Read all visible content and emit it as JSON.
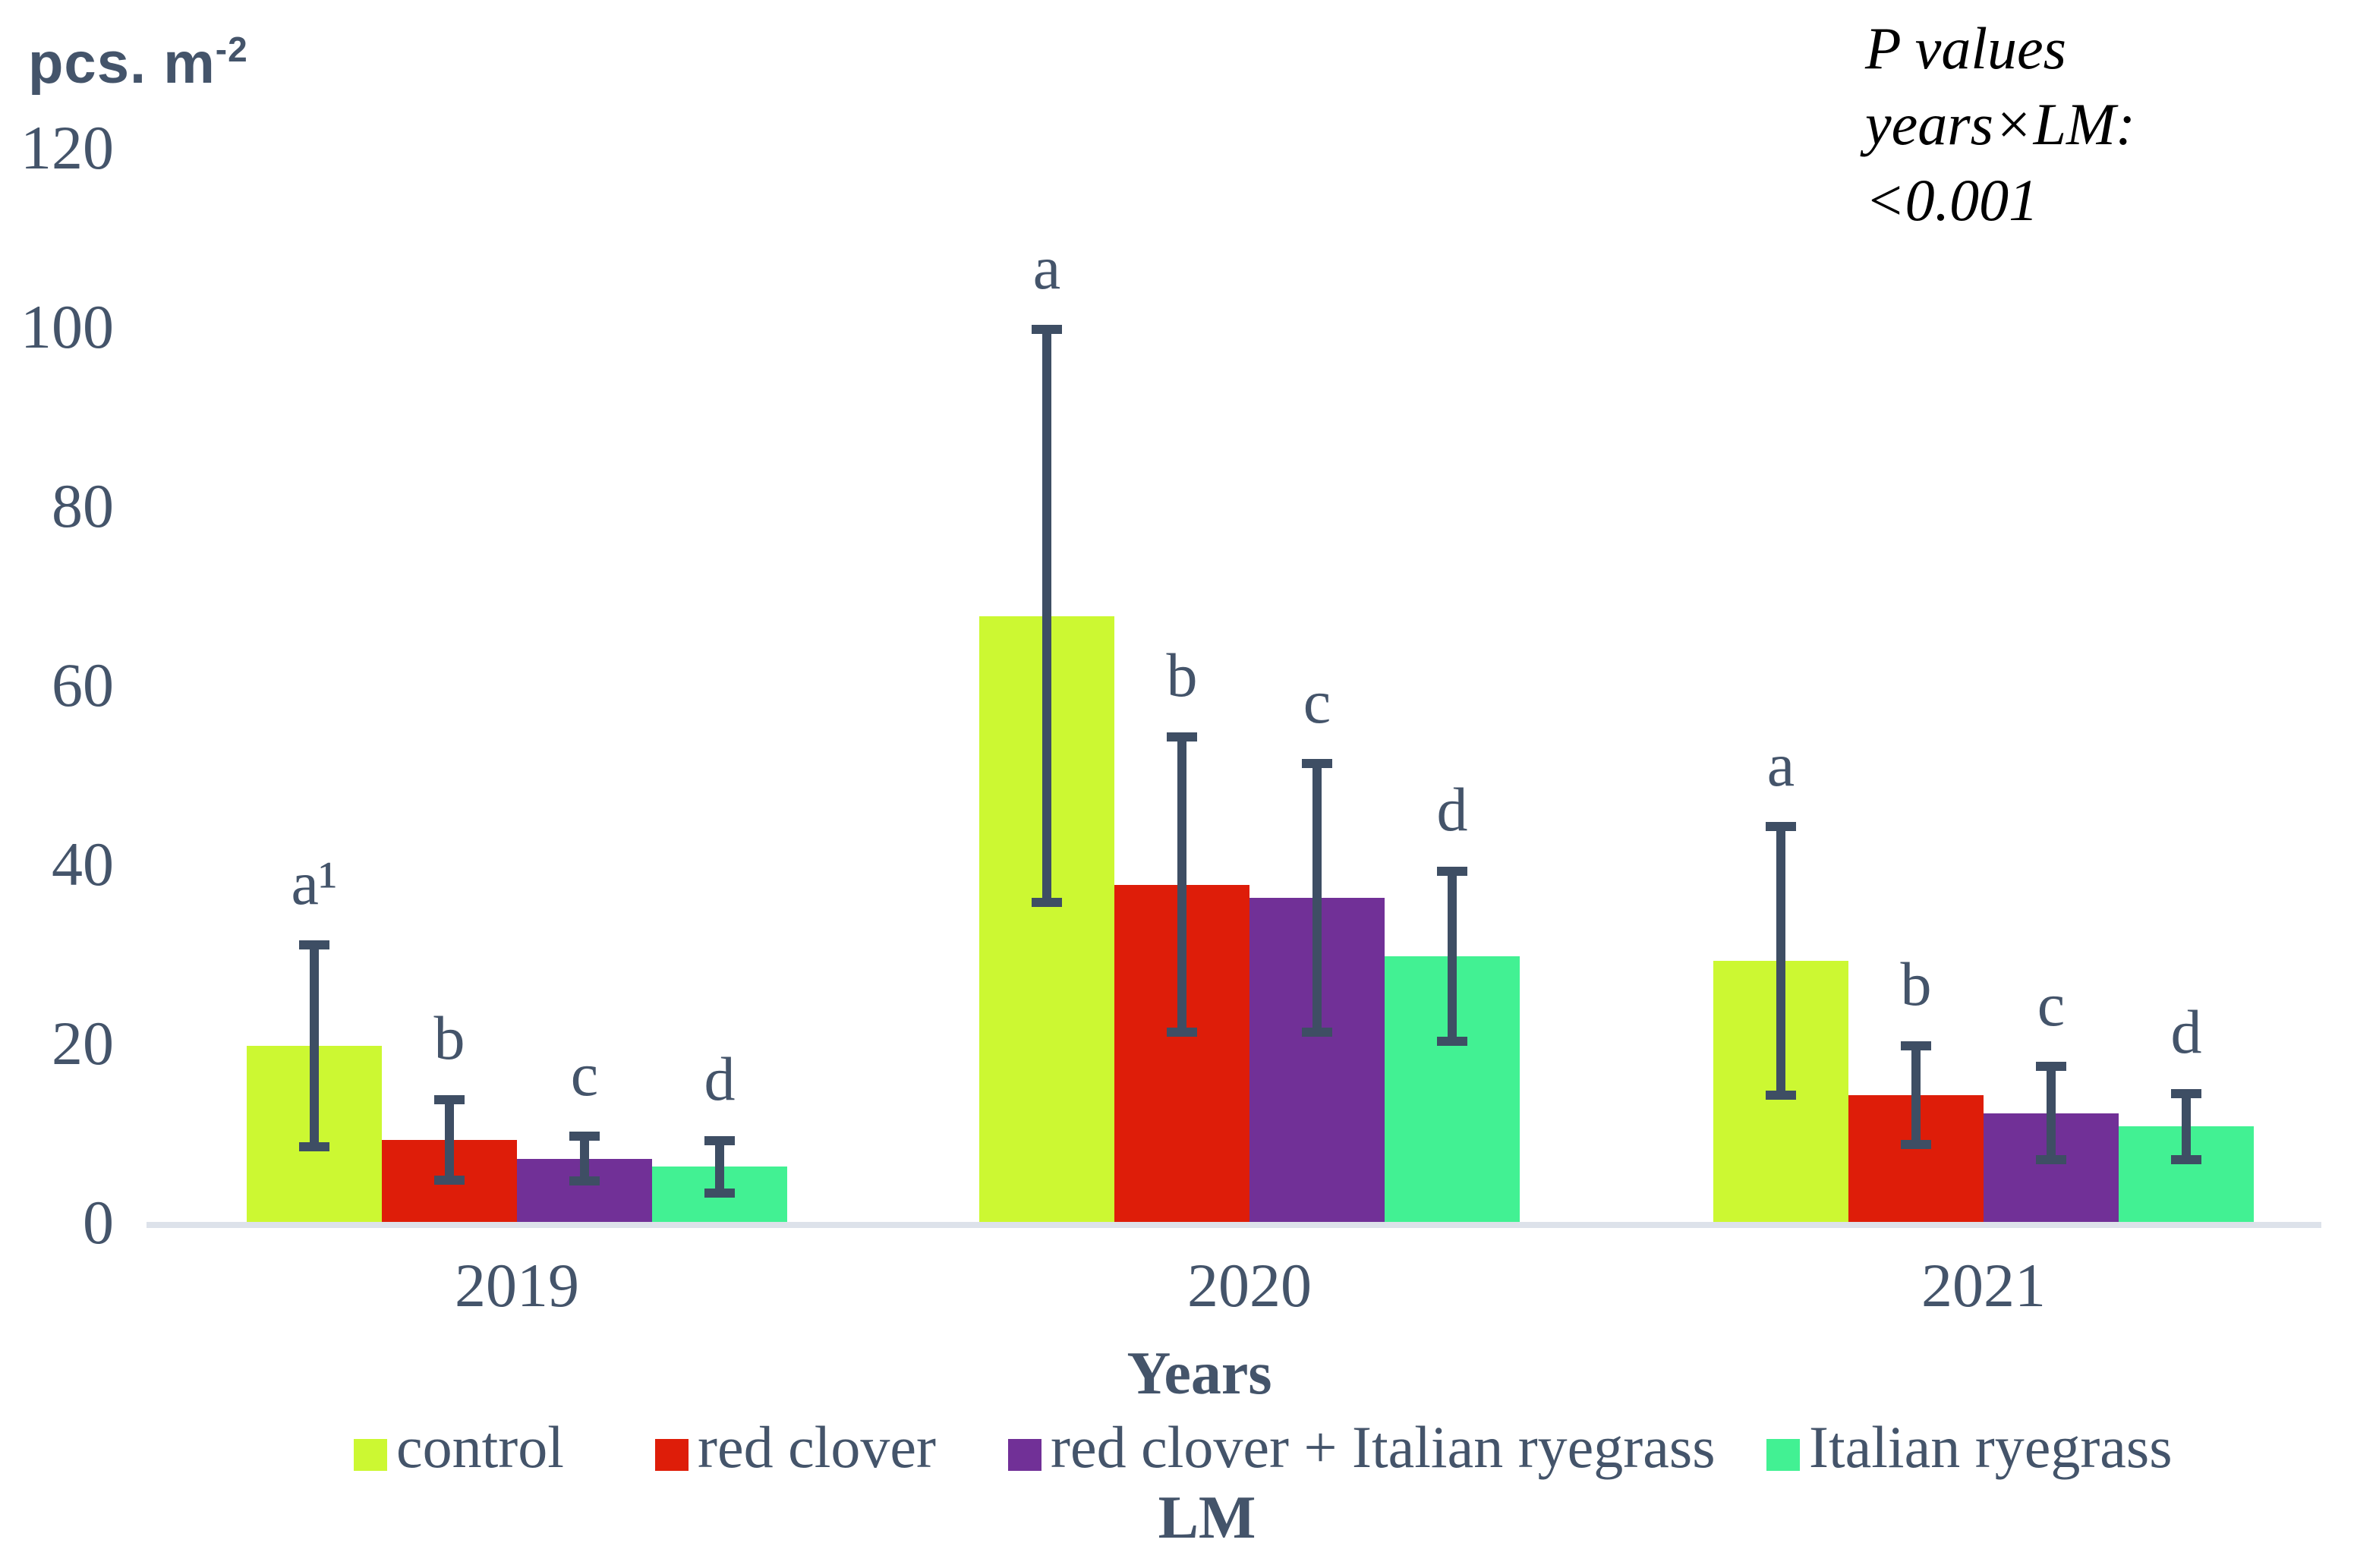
{
  "colors": {
    "text": "#44546a",
    "error_bar": "#3e4e64",
    "axis_line": "#dde2ea",
    "annotation_text": "#000000",
    "background": "#ffffff"
  },
  "chart_data": {
    "type": "bar",
    "title": "",
    "y_axis": {
      "unit_label": {
        "text": "pcs. m",
        "superscript": "-2"
      },
      "ticks": [
        0,
        20,
        40,
        60,
        80,
        100,
        120
      ],
      "ylim": [
        0,
        120
      ],
      "grid": "off"
    },
    "x_axis": {
      "title": "Years",
      "categories": [
        "2019",
        "2020",
        "2021"
      ]
    },
    "legend": {
      "title": "LM",
      "position": "bottom"
    },
    "annotation": {
      "lines": [
        "P values",
        "years×LM:",
        "<0.001"
      ]
    },
    "series": [
      {
        "name": "control",
        "color": "#ccf832",
        "values": [
          20,
          68,
          29.5
        ],
        "errors": [
          11.3,
          32,
          15
        ],
        "letters": [
          "a¹",
          "a",
          "a"
        ]
      },
      {
        "name": "red clover",
        "color": "#de1d09",
        "values": [
          9.5,
          38,
          14.5
        ],
        "errors": [
          4.5,
          16.5,
          5.5
        ],
        "letters": [
          "b",
          "b",
          "b"
        ]
      },
      {
        "name": "red clover + Italian ryegrass",
        "color": "#713097",
        "values": [
          7.4,
          36.5,
          12.5
        ],
        "errors": [
          2.5,
          15,
          5.2
        ],
        "letters": [
          "c",
          "c",
          "c"
        ]
      },
      {
        "name": "Italian ryegrass",
        "color": "#42f193",
        "values": [
          6.5,
          30,
          11
        ],
        "errors": [
          2.9,
          9.5,
          3.7
        ],
        "letters": [
          "d",
          "d",
          "d"
        ]
      }
    ]
  }
}
